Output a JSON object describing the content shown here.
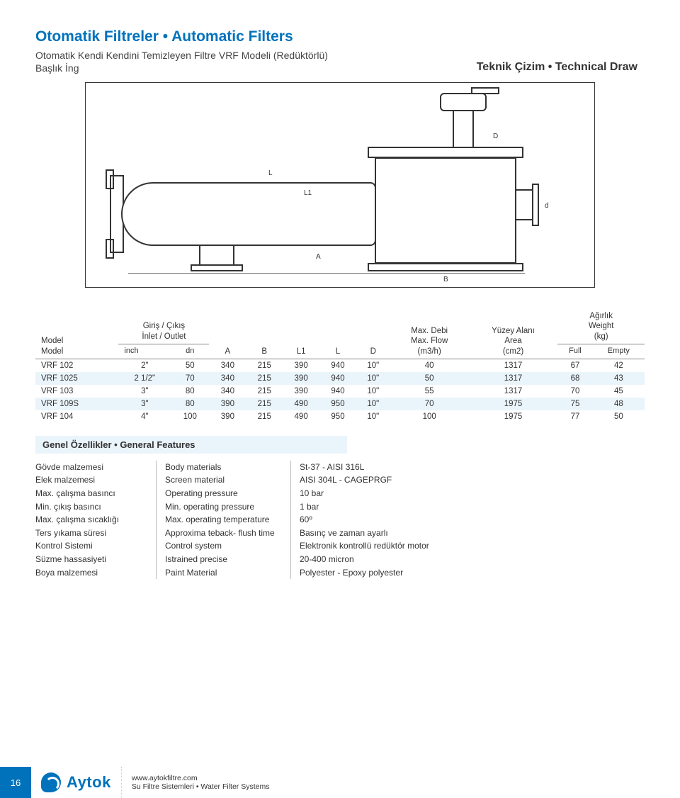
{
  "header": {
    "title": "Otomatik Filtreler • Automatic Filters",
    "subtitle1": "Otomatik Kendi Kendini Temizleyen Filtre VRF Modeli (Redüktörlü)",
    "subtitle2": "Başlık İng",
    "draw_title": "Teknik Çizim • Technical Draw"
  },
  "drawing_labels": {
    "L": "L",
    "L1": "L1",
    "A": "A",
    "B": "B",
    "D": "D",
    "d_small": "d"
  },
  "table": {
    "headers": {
      "model": "Model\nModel",
      "inlet": "Giriş / Çıkış\nİnlet / Outlet",
      "A": "A",
      "B": "B",
      "L1": "L1",
      "L": "L",
      "D": "D",
      "flow": "Max. Debi\nMax. Flow\n(m3/h)",
      "area": "Yüzey Alanı\nArea\n(cm2)",
      "weight": "Ağırlık\nWeight\n(kg)"
    },
    "sub": {
      "inch": "inch",
      "dn": "dn",
      "full": "Full",
      "empty": "Empty"
    },
    "rows": [
      {
        "model": "VRF 102",
        "inch": "2\"",
        "dn": "50",
        "A": "340",
        "B": "215",
        "L1": "390",
        "L": "940",
        "D": "10\"",
        "flow": "40",
        "area": "1317",
        "full": "67",
        "empty": "42",
        "alt": false
      },
      {
        "model": "VRF 1025",
        "inch": "2 1/2\"",
        "dn": "70",
        "A": "340",
        "B": "215",
        "L1": "390",
        "L": "940",
        "D": "10\"",
        "flow": "50",
        "area": "1317",
        "full": "68",
        "empty": "43",
        "alt": true
      },
      {
        "model": "VRF 103",
        "inch": "3\"",
        "dn": "80",
        "A": "340",
        "B": "215",
        "L1": "390",
        "L": "940",
        "D": "10\"",
        "flow": "55",
        "area": "1317",
        "full": "70",
        "empty": "45",
        "alt": false
      },
      {
        "model": "VRF 109S",
        "inch": "3\"",
        "dn": "80",
        "A": "390",
        "B": "215",
        "L1": "490",
        "L": "950",
        "D": "10\"",
        "flow": "70",
        "area": "1975",
        "full": "75",
        "empty": "48",
        "alt": true
      },
      {
        "model": "VRF 104",
        "inch": "4\"",
        "dn": "100",
        "A": "390",
        "B": "215",
        "L1": "490",
        "L": "950",
        "D": "10\"",
        "flow": "100",
        "area": "1975",
        "full": "77",
        "empty": "50",
        "alt": false
      }
    ]
  },
  "features": {
    "heading": "Genel Özellikler • General Features",
    "rows": [
      {
        "tr": "Gövde malzemesi",
        "en": "Body materials",
        "val": "St-37 - AISI 316L"
      },
      {
        "tr": "Elek malzemesi",
        "en": "Screen material",
        "val": "AISI 304L - CAGEPRGF"
      },
      {
        "tr": "Max. çalışma basıncı",
        "en": "Operating pressure",
        "val": "10 bar"
      },
      {
        "tr": "Min. çıkış basıncı",
        "en": "Min. operating pressure",
        "val": "1 bar"
      },
      {
        "tr": "Max. çalışma sıcaklığı",
        "en": "Max. operating temperature",
        "val": "60º"
      },
      {
        "tr": "Ters yıkama süresi",
        "en": "Approxima teback- flush time",
        "val": "Basınç ve zaman ayarlı"
      },
      {
        "tr": "Kontrol Sistemi",
        "en": "Control system",
        "val": "Elektronik kontrollü redüktör motor"
      },
      {
        "tr": "Süzme hassasiyeti",
        "en": "Istrained precise",
        "val": "20-400 micron"
      },
      {
        "tr": "Boya malzemesi",
        "en": "Paint Material",
        "val": "Polyester - Epoxy polyester"
      }
    ]
  },
  "footer": {
    "page": "16",
    "logo_text": "Aytok",
    "url": "www.aytokfiltre.com",
    "tagline": "Su Filtre Sistemleri • Water Filter Systems"
  },
  "colors": {
    "brand_blue": "#0072bc",
    "row_alt": "#eaf4fb",
    "text": "#333333"
  }
}
